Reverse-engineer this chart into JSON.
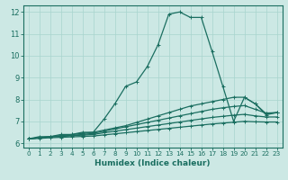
{
  "xlabel": "Humidex (Indice chaleur)",
  "background_color": "#cce8e4",
  "grid_color": "#a8d4ce",
  "line_color": "#1a6e60",
  "xlim": [
    -0.5,
    23.5
  ],
  "ylim": [
    5.8,
    12.3
  ],
  "xticks": [
    0,
    1,
    2,
    3,
    4,
    5,
    6,
    7,
    8,
    9,
    10,
    11,
    12,
    13,
    14,
    15,
    16,
    17,
    18,
    19,
    20,
    21,
    22,
    23
  ],
  "yticks": [
    6,
    7,
    8,
    9,
    10,
    11,
    12
  ],
  "lines": [
    {
      "x": [
        0,
        1,
        2,
        3,
        4,
        5,
        6,
        7,
        8,
        9,
        10,
        11,
        12,
        13,
        14,
        15,
        16,
        17,
        18,
        19,
        20,
        21,
        22,
        23
      ],
      "y": [
        6.2,
        6.3,
        6.3,
        6.4,
        6.4,
        6.5,
        6.5,
        7.1,
        7.8,
        8.6,
        8.8,
        9.5,
        10.5,
        11.9,
        12.0,
        11.75,
        11.75,
        10.2,
        8.6,
        7.0,
        8.1,
        7.8,
        7.3,
        7.4
      ]
    },
    {
      "x": [
        0,
        1,
        2,
        3,
        4,
        5,
        6,
        7,
        8,
        9,
        10,
        11,
        12,
        13,
        14,
        15,
        16,
        17,
        18,
        19,
        20,
        21,
        22,
        23
      ],
      "y": [
        6.2,
        6.25,
        6.3,
        6.35,
        6.4,
        6.45,
        6.5,
        6.6,
        6.7,
        6.8,
        6.95,
        7.1,
        7.25,
        7.4,
        7.55,
        7.7,
        7.8,
        7.9,
        8.0,
        8.1,
        8.1,
        7.8,
        7.35,
        7.4
      ]
    },
    {
      "x": [
        0,
        1,
        2,
        3,
        4,
        5,
        6,
        7,
        8,
        9,
        10,
        11,
        12,
        13,
        14,
        15,
        16,
        17,
        18,
        19,
        20,
        21,
        22,
        23
      ],
      "y": [
        6.2,
        6.25,
        6.3,
        6.33,
        6.36,
        6.4,
        6.45,
        6.55,
        6.65,
        6.75,
        6.85,
        6.95,
        7.05,
        7.15,
        7.25,
        7.35,
        7.45,
        7.55,
        7.62,
        7.68,
        7.72,
        7.55,
        7.38,
        7.4
      ]
    },
    {
      "x": [
        0,
        1,
        2,
        3,
        4,
        5,
        6,
        7,
        8,
        9,
        10,
        11,
        12,
        13,
        14,
        15,
        16,
        17,
        18,
        19,
        20,
        21,
        22,
        23
      ],
      "y": [
        6.2,
        6.25,
        6.28,
        6.31,
        6.34,
        6.37,
        6.4,
        6.48,
        6.55,
        6.62,
        6.69,
        6.76,
        6.83,
        6.9,
        6.97,
        7.04,
        7.11,
        7.18,
        7.23,
        7.28,
        7.32,
        7.25,
        7.2,
        7.2
      ]
    },
    {
      "x": [
        0,
        1,
        2,
        3,
        4,
        5,
        6,
        7,
        8,
        9,
        10,
        11,
        12,
        13,
        14,
        15,
        16,
        17,
        18,
        19,
        20,
        21,
        22,
        23
      ],
      "y": [
        6.2,
        6.22,
        6.25,
        6.27,
        6.29,
        6.31,
        6.33,
        6.38,
        6.43,
        6.48,
        6.53,
        6.58,
        6.63,
        6.68,
        6.73,
        6.78,
        6.83,
        6.88,
        6.92,
        6.96,
        7.0,
        6.98,
        6.97,
        6.97
      ]
    }
  ]
}
